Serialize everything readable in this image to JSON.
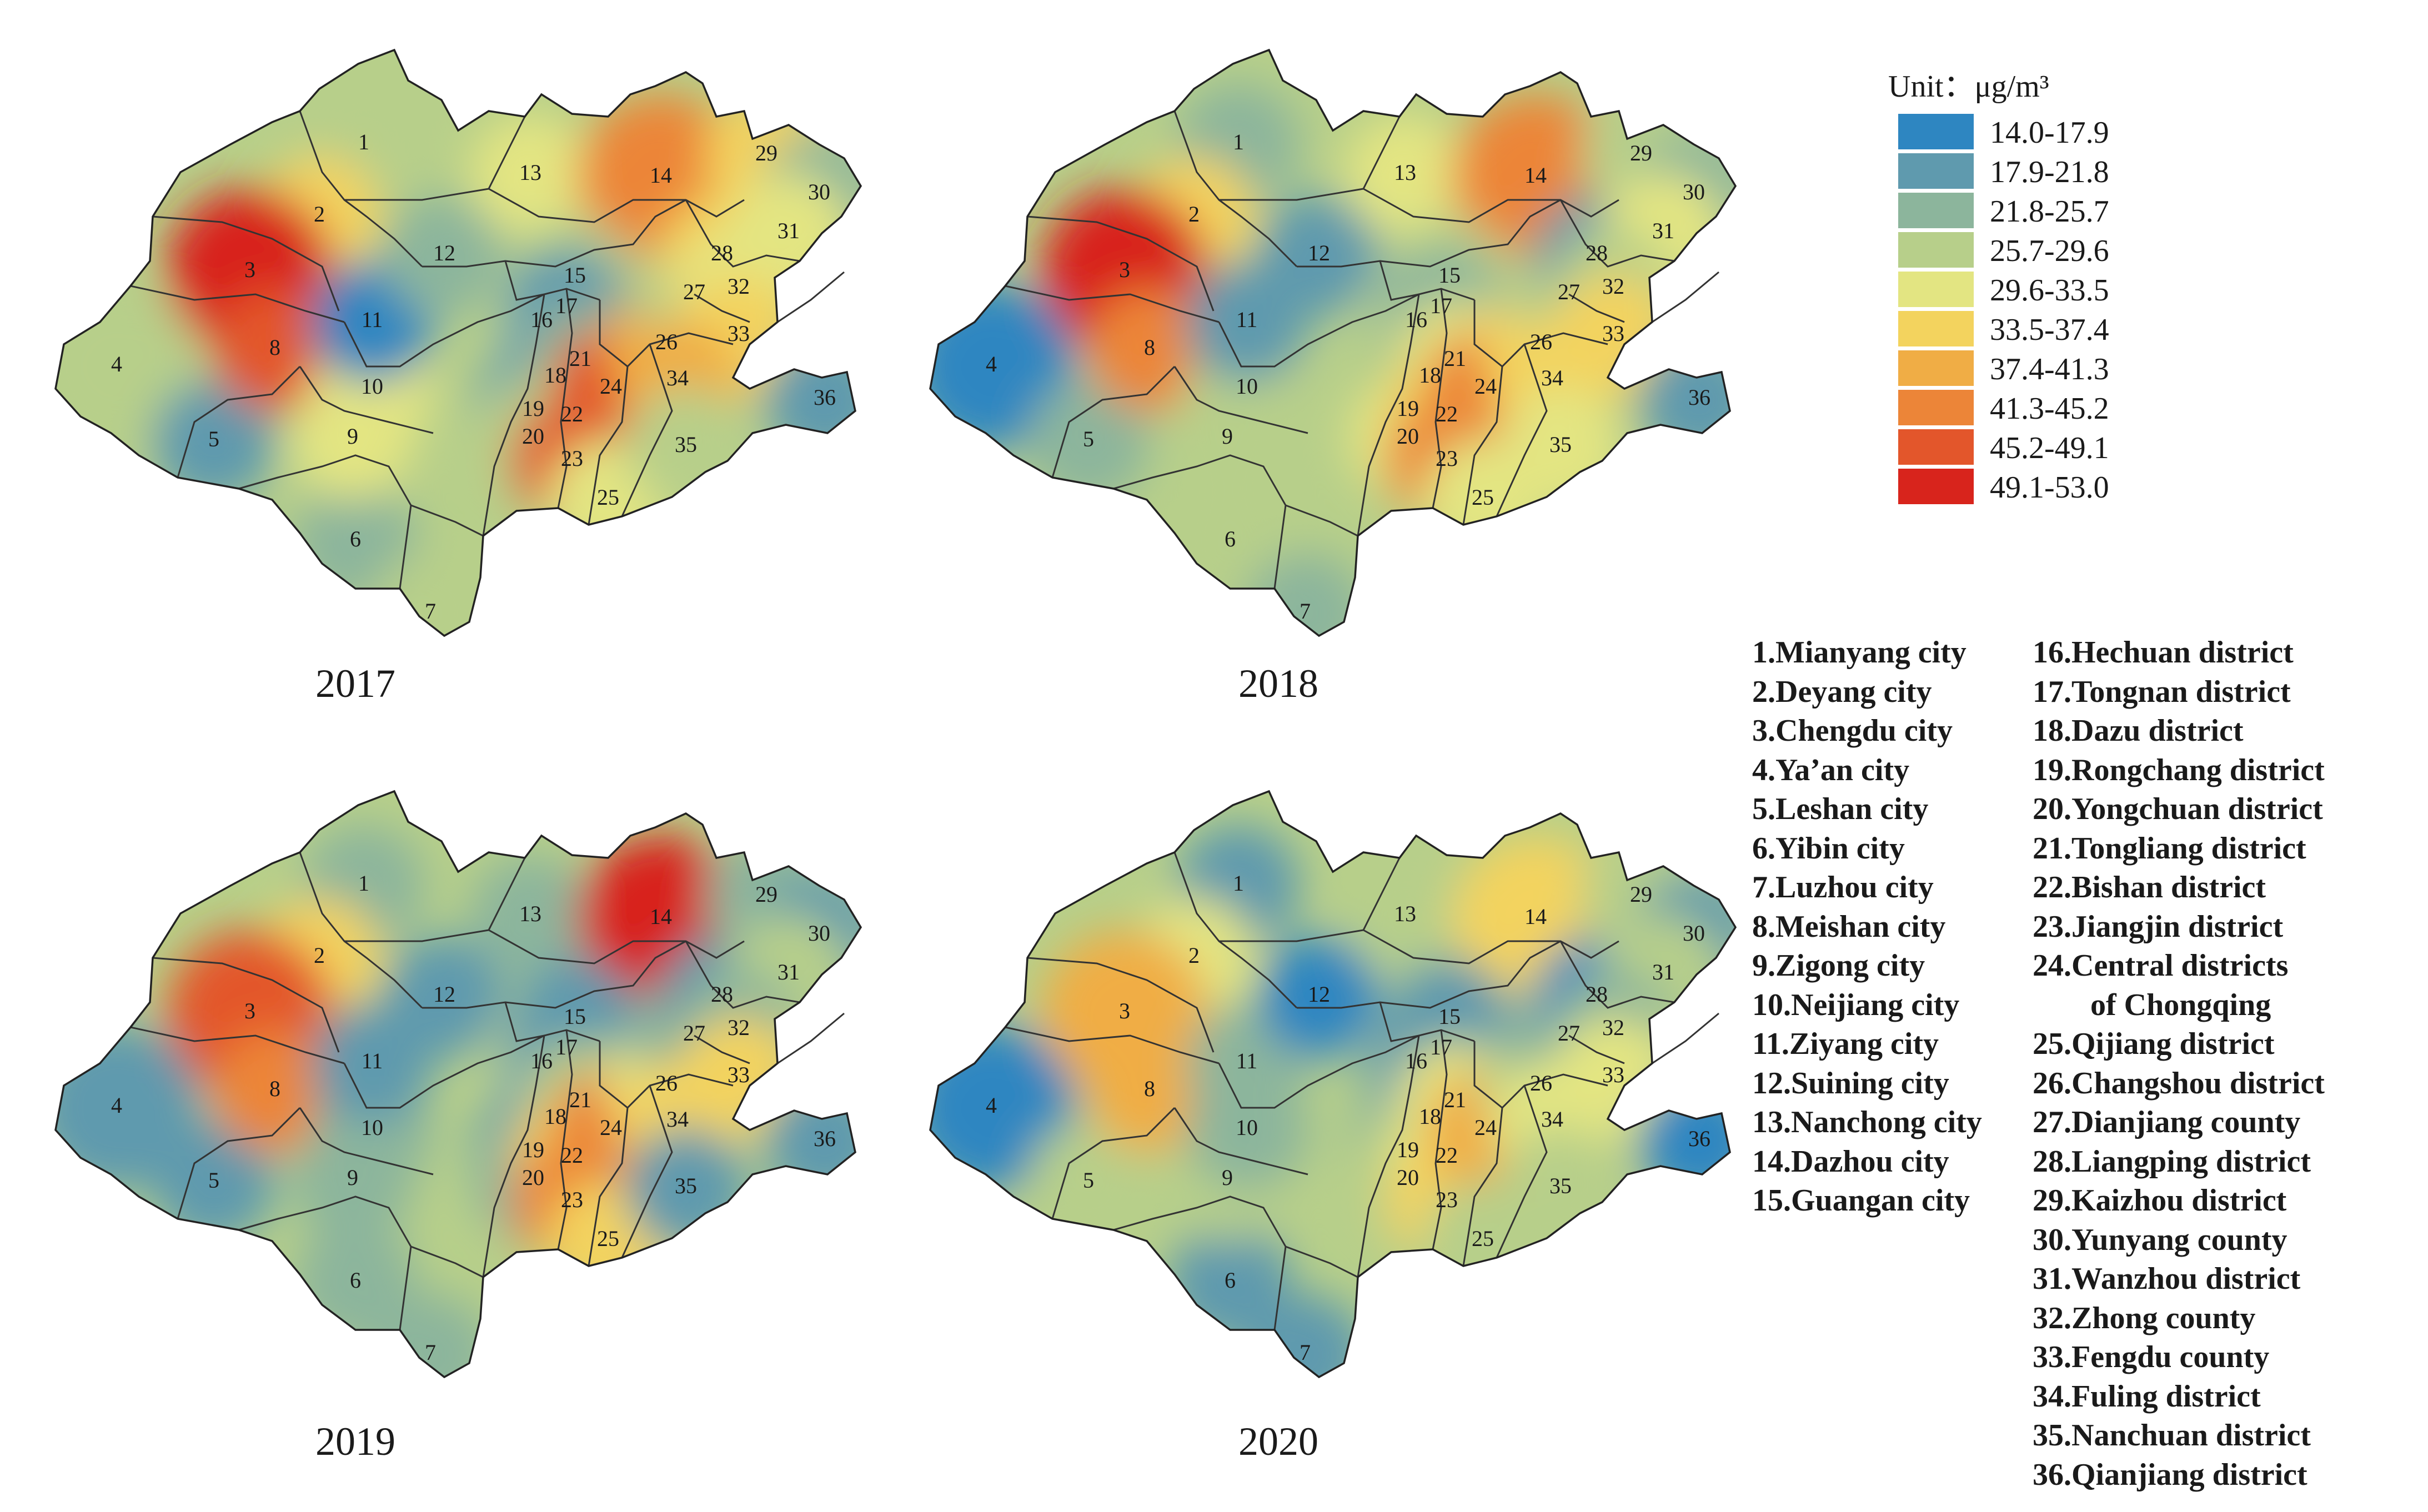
{
  "legend": {
    "title": "Unit：μg/m³",
    "classes": [
      {
        "label": "14.0-17.9",
        "color": "#2e86c1"
      },
      {
        "label": "17.9-21.8",
        "color": "#5f9aae"
      },
      {
        "label": "21.8-25.7",
        "color": "#8cb59c"
      },
      {
        "label": "25.7-29.6",
        "color": "#b7cf8a"
      },
      {
        "label": "29.6-33.5",
        "color": "#e3e582"
      },
      {
        "label": "33.5-37.4",
        "color": "#f3d35e"
      },
      {
        "label": "37.4-41.3",
        "color": "#f0ad45"
      },
      {
        "label": "41.3-45.2",
        "color": "#ec8538"
      },
      {
        "label": "45.2-49.1",
        "color": "#e3562b"
      },
      {
        "label": "49.1-53.0",
        "color": "#d8241c"
      }
    ]
  },
  "maps": [
    {
      "year": "2017"
    },
    {
      "year": "2018"
    },
    {
      "year": "2019"
    },
    {
      "year": "2020"
    }
  ],
  "region_numbers": [
    "1",
    "2",
    "3",
    "4",
    "5",
    "6",
    "7",
    "8",
    "9",
    "10",
    "11",
    "12",
    "13",
    "14",
    "15",
    "16",
    "17",
    "18",
    "19",
    "20",
    "21",
    "22",
    "23",
    "24",
    "25",
    "26",
    "27",
    "28",
    "29",
    "30",
    "31",
    "32",
    "33",
    "34",
    "35",
    "36"
  ],
  "region_names_left": [
    "1.Mianyang city",
    "2.Deyang city",
    "3.Chengdu city",
    "4.Ya’an city",
    "5.Leshan city",
    "6.Yibin city",
    "7.Luzhou city",
    "8.Meishan city",
    "9.Zigong city",
    "10.Neijiang city",
    "11.Ziyang city",
    "12.Suining city",
    "13.Nanchong city",
    "14.Dazhou city",
    "15.Guangan city"
  ],
  "region_names_right": [
    "16.Hechuan district",
    "17.Tongnan district",
    "18.Dazu district",
    "19.Rongchang district",
    "20.Yongchuan district",
    "21.Tongliang district",
    "22.Bishan district",
    "23.Jiangjin district",
    "24.Central districts",
    "of Chongqing",
    "25.Qijiang district",
    "26.Changshou district",
    "27.Dianjiang county",
    "28.Liangping district",
    "29.Kaizhou district",
    "30.Yunyang county",
    "31.Wanzhou district",
    "32.Zhong county",
    "33.Fengdu county",
    "34.Fuling district",
    "35.Nanchuan district",
    "36.Qianjiang district"
  ],
  "concentration_class_by_year": {
    "2017": [
      3,
      5,
      9,
      3,
      1,
      2,
      3,
      8,
      4,
      4,
      0,
      2,
      4,
      7,
      3,
      3,
      1,
      0,
      1,
      3,
      2,
      3,
      8,
      8,
      4,
      6,
      3,
      5,
      5,
      2,
      4,
      4,
      5,
      6,
      3,
      1
    ],
    "2018": [
      2,
      5,
      9,
      0,
      2,
      3,
      2,
      7,
      3,
      3,
      1,
      1,
      4,
      7,
      3,
      3,
      2,
      2,
      3,
      4,
      4,
      5,
      7,
      7,
      4,
      5,
      3,
      1,
      3,
      2,
      4,
      3,
      5,
      5,
      4,
      1
    ],
    "2019": [
      2,
      5,
      8,
      1,
      1,
      2,
      2,
      7,
      2,
      2,
      1,
      1,
      2,
      9,
      1,
      3,
      1,
      0,
      1,
      2,
      3,
      5,
      7,
      7,
      5,
      4,
      2,
      1,
      2,
      1,
      3,
      2,
      5,
      5,
      1,
      1
    ],
    "2020": [
      1,
      4,
      6,
      0,
      3,
      1,
      1,
      6,
      3,
      2,
      2,
      0,
      3,
      5,
      1,
      2,
      1,
      0,
      2,
      3,
      4,
      4,
      5,
      6,
      3,
      3,
      2,
      0,
      3,
      1,
      3,
      2,
      4,
      4,
      3,
      0
    ]
  }
}
